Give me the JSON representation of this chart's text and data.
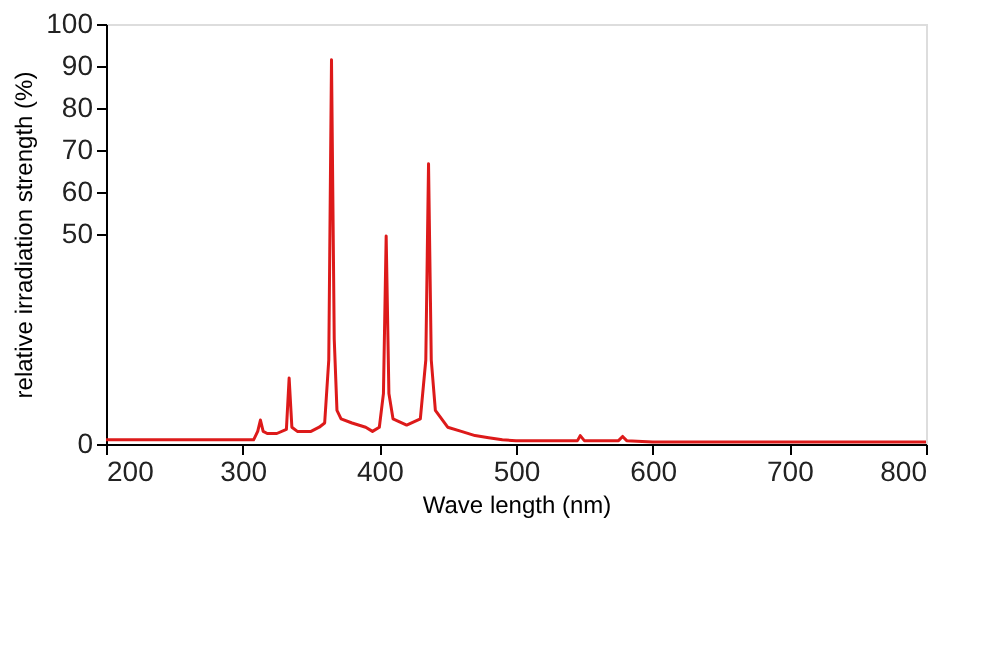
{
  "chart_data": {
    "type": "line",
    "xlabel": "Wave length (nm)",
    "ylabel": "relative irradiation strength (%)",
    "xlim": [
      200,
      800
    ],
    "ylim": [
      0,
      100
    ],
    "xticks": [
      200,
      300,
      400,
      500,
      600,
      700,
      800
    ],
    "yticks": [
      0,
      50,
      60,
      70,
      80,
      90,
      100
    ],
    "grid": false,
    "series": [
      {
        "color": "#dd1a1a",
        "x": [
          200,
          250,
          300,
          308,
          311,
          313,
          315,
          318,
          325,
          332,
          334,
          336,
          340,
          350,
          356,
          360,
          363,
          365,
          367,
          369,
          372,
          380,
          390,
          395,
          400,
          403,
          405,
          407,
          410,
          420,
          430,
          434,
          436,
          438,
          441,
          450,
          460,
          470,
          480,
          490,
          500,
          520,
          545,
          547,
          550,
          575,
          578,
          581,
          600,
          700,
          800
        ],
        "values": [
          1,
          1,
          1,
          1,
          3,
          5.7,
          3,
          2.5,
          2.5,
          3.5,
          15.7,
          4,
          3,
          3,
          4,
          5,
          20,
          91.5,
          25,
          8,
          6,
          5,
          4,
          3,
          4,
          12,
          49.5,
          12,
          6,
          4.5,
          6,
          20,
          66.7,
          20,
          8,
          4,
          3,
          2,
          1.5,
          1,
          0.8,
          0.8,
          0.8,
          2,
          0.8,
          0.8,
          1.8,
          0.8,
          0.5,
          0.5,
          0.5
        ]
      }
    ]
  }
}
